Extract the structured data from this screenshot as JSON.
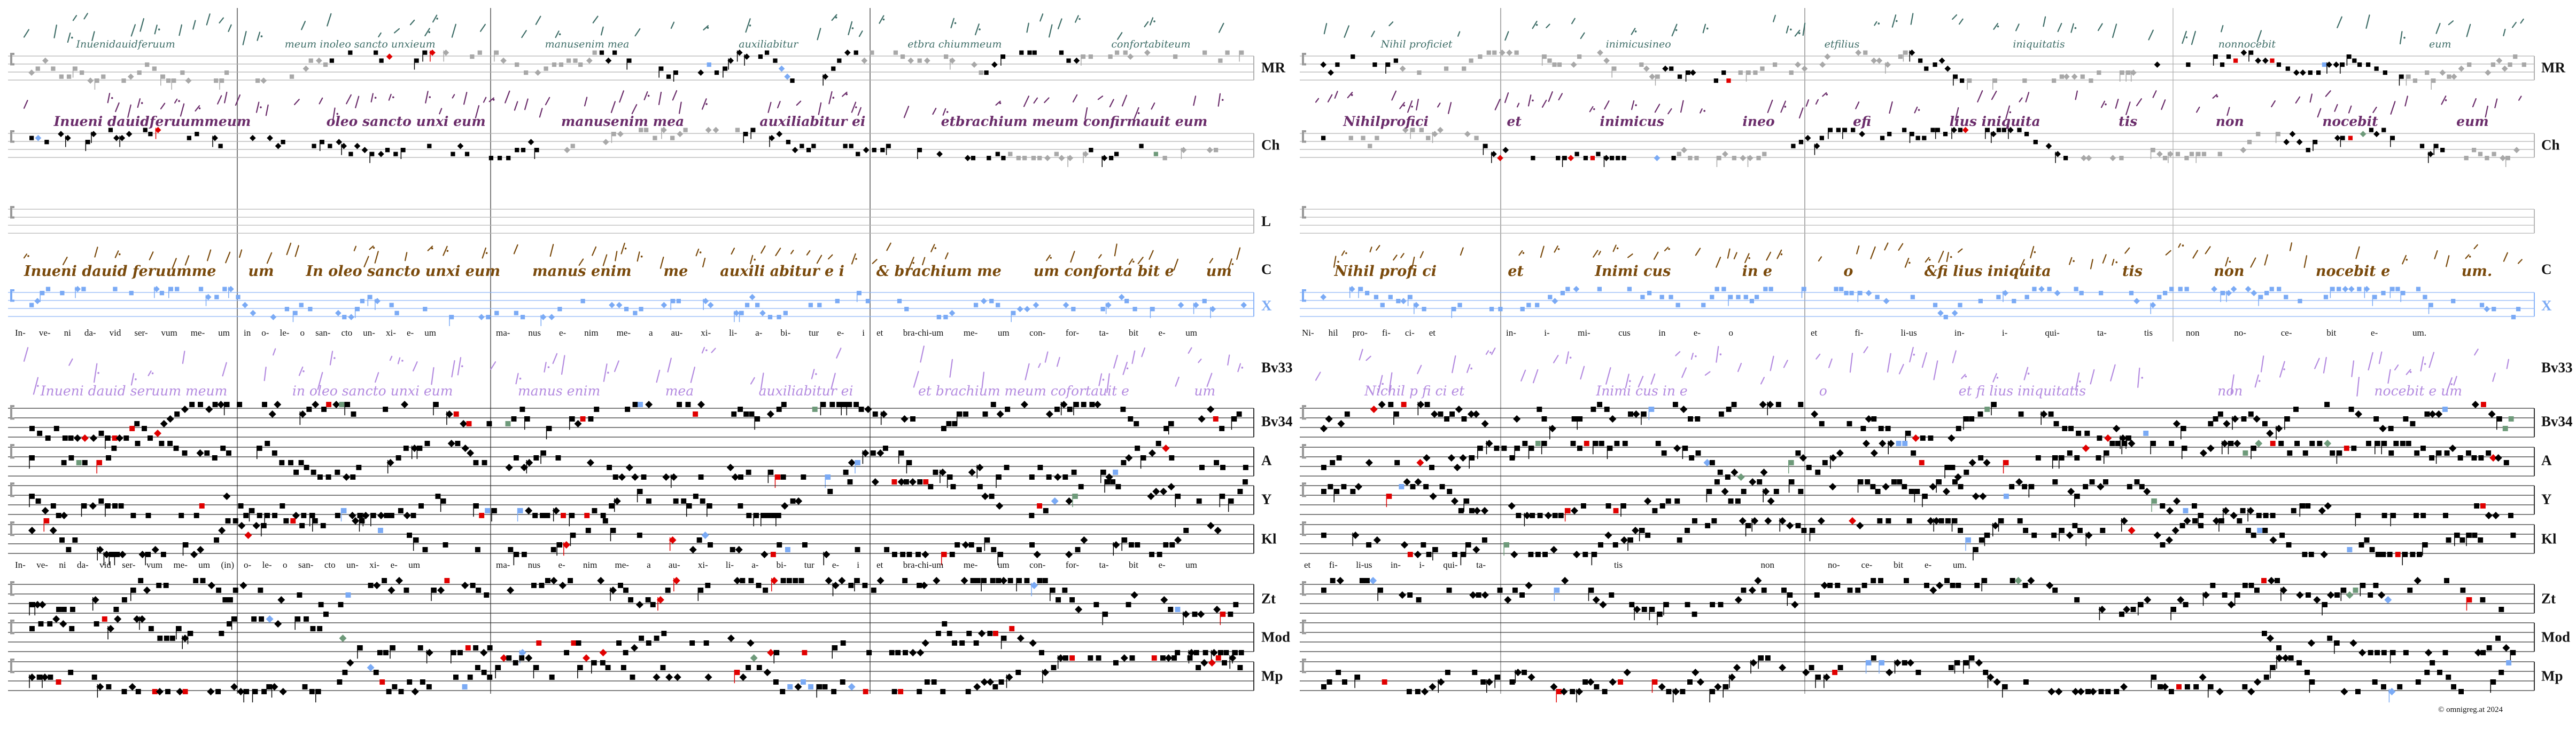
{
  "sigla": {
    "MR": "MR",
    "Ch": "Ch",
    "L": "L",
    "C": "C",
    "X": "X",
    "Bv33": "Bv33",
    "Bv34": "Bv34",
    "A": "A",
    "Y": "Y",
    "Kl": "Kl",
    "Zt": "Zt",
    "Mod": "Mod",
    "Mp": "Mp"
  },
  "manuscript_text": {
    "MR": {
      "left": [
        "Inuenidauidferuum",
        "meum inoleo sancto unxieum",
        "manusenim mea",
        "auxiliabitur",
        "etbra chiummeum",
        "confortabiteum"
      ],
      "right": [
        "Nihil proficiet",
        "inimicusineo",
        "etfilius",
        "iniquitatis",
        "nonnocebit",
        "eum"
      ]
    },
    "Ch": {
      "left": [
        "Inueni dauidferuummeum",
        "oleo sancto unxi eum",
        "manusenim mea",
        "auxiliabitur ei",
        "etbrachium meum confirmauit eum"
      ],
      "right": [
        "Nihilprofici",
        "et",
        "inimicus",
        "ineo",
        "efi",
        "lius iniquita",
        "tis",
        "non",
        "nocebit",
        "eum"
      ]
    },
    "C": {
      "left": [
        "Inueni dauid feruumme",
        "um",
        "In oleo sancto unxi eum",
        "manus enim",
        "me",
        "auxili abitur e i",
        "& brachium me",
        "um conforta bit e",
        "um"
      ],
      "right": [
        "Nihil profi ci",
        "et",
        "Inimi cus",
        "in e",
        "o",
        "&fi lius iniquita",
        "tis",
        "non",
        "nocebit e",
        "um."
      ]
    },
    "Bv33": {
      "left": [
        "Inueni dauid seruum meum",
        "in oleo sancto unxi eum",
        "manus enim",
        "mea",
        "auxiliabitur ei",
        "et brachium meum cofortauit e",
        "um"
      ],
      "right": [
        "Nichil p fi ci et",
        "Inimi cus in e",
        "o",
        "et fi lius iniquitatis",
        "non",
        "nocebit e um"
      ]
    }
  },
  "lyrics": {
    "upper": {
      "left": [
        "In- ve- ni da- vid ser- vum me- um",
        "in o- le- o san- cto un- xi- e- um",
        "ma- nus e- nim me- a au- xi- li- a- bi- tur e- i",
        "et bra-chi-um me- um con- for- ta- bit e- um"
      ],
      "right": [
        "Ni- hil pro- fi- ci- et",
        "in- i- mi- cus in e- o",
        "et fi- li-us in- i- qui- ta- tis",
        "non no- ce- bit e- um."
      ]
    },
    "lower": {
      "left": [
        "In- ve- ni da- vid ser- vum me- um (in)",
        "o- le- o san- cto un- xi- e- um",
        "ma- nus e- nim me- a au- xi- li- a- bi- tur e- i",
        "et bra-chi-um me- um con- for- ta- bit e- um"
      ],
      "right": [
        "et fi- li-us in- i- qui- ta-",
        "tis non",
        "no- ce- bit e- um."
      ]
    }
  },
  "copyright": "©  omnigreg.at   2024",
  "colors": {
    "neume": "#000000",
    "neume_gray": "#a8a8a8",
    "variant_red": "#e00000",
    "variant_blue": "#7aaaf5",
    "variant_green": "#6e9a7a",
    "hand_MR": "#3f6e68",
    "hand_Ch": "#6b2d6b",
    "hand_C": "#7a4a0c",
    "hand_Bv33": "#b48be0",
    "staff_X": "#8ab4f8"
  }
}
